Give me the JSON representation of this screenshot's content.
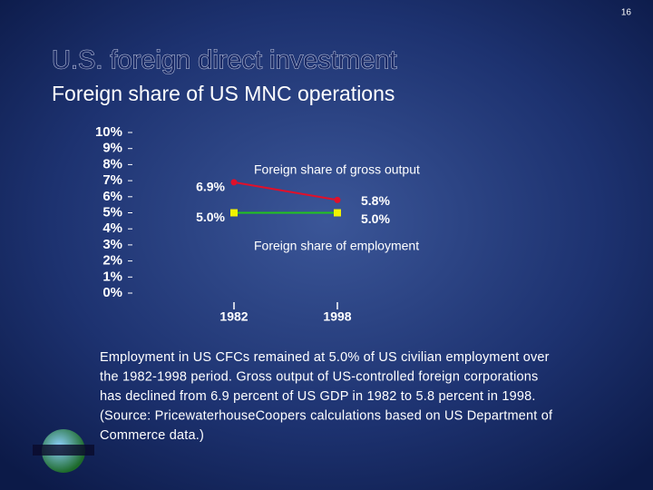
{
  "page_number": "16",
  "title": "U.S. foreign direct investment",
  "subtitle": "Foreign share of US MNC operations",
  "chart_data": {
    "type": "line",
    "categories": [
      "1982",
      "1998"
    ],
    "series": [
      {
        "name": "Foreign share of gross output",
        "color": "#e0102a",
        "marker_color": "#e0102a",
        "values": [
          6.9,
          5.8
        ],
        "value_labels": [
          "6.9%",
          "5.8%"
        ]
      },
      {
        "name": "Foreign share of employment",
        "color": "#22c41e",
        "marker_color": "#f2f200",
        "values": [
          5.0,
          5.0
        ],
        "value_labels": [
          "5.0%",
          "5.0%"
        ]
      }
    ],
    "ylim": [
      0,
      10
    ],
    "yticks": [
      {
        "value": 0,
        "label": "0%"
      },
      {
        "value": 1,
        "label": "1%"
      },
      {
        "value": 2,
        "label": "2%"
      },
      {
        "value": 3,
        "label": "3%"
      },
      {
        "value": 4,
        "label": "4%"
      },
      {
        "value": 5,
        "label": "5%"
      },
      {
        "value": 6,
        "label": "6%"
      },
      {
        "value": 7,
        "label": "7%"
      },
      {
        "value": 8,
        "label": "8%"
      },
      {
        "value": 9,
        "label": "9%"
      },
      {
        "value": 10,
        "label": "10%"
      }
    ],
    "grid": false
  },
  "note": [
    "Employment in US CFCs remained at 5.0% of US civilian employment over",
    "the 1982-1998 period. Gross output of US-controlled foreign corporations",
    "has declined from 6.9 percent of US GDP in 1982 to 5.8 percent in 1998.",
    "(Source: PricewaterhouseCoopers calculations based on US Department of",
    "Commerce data.)"
  ]
}
